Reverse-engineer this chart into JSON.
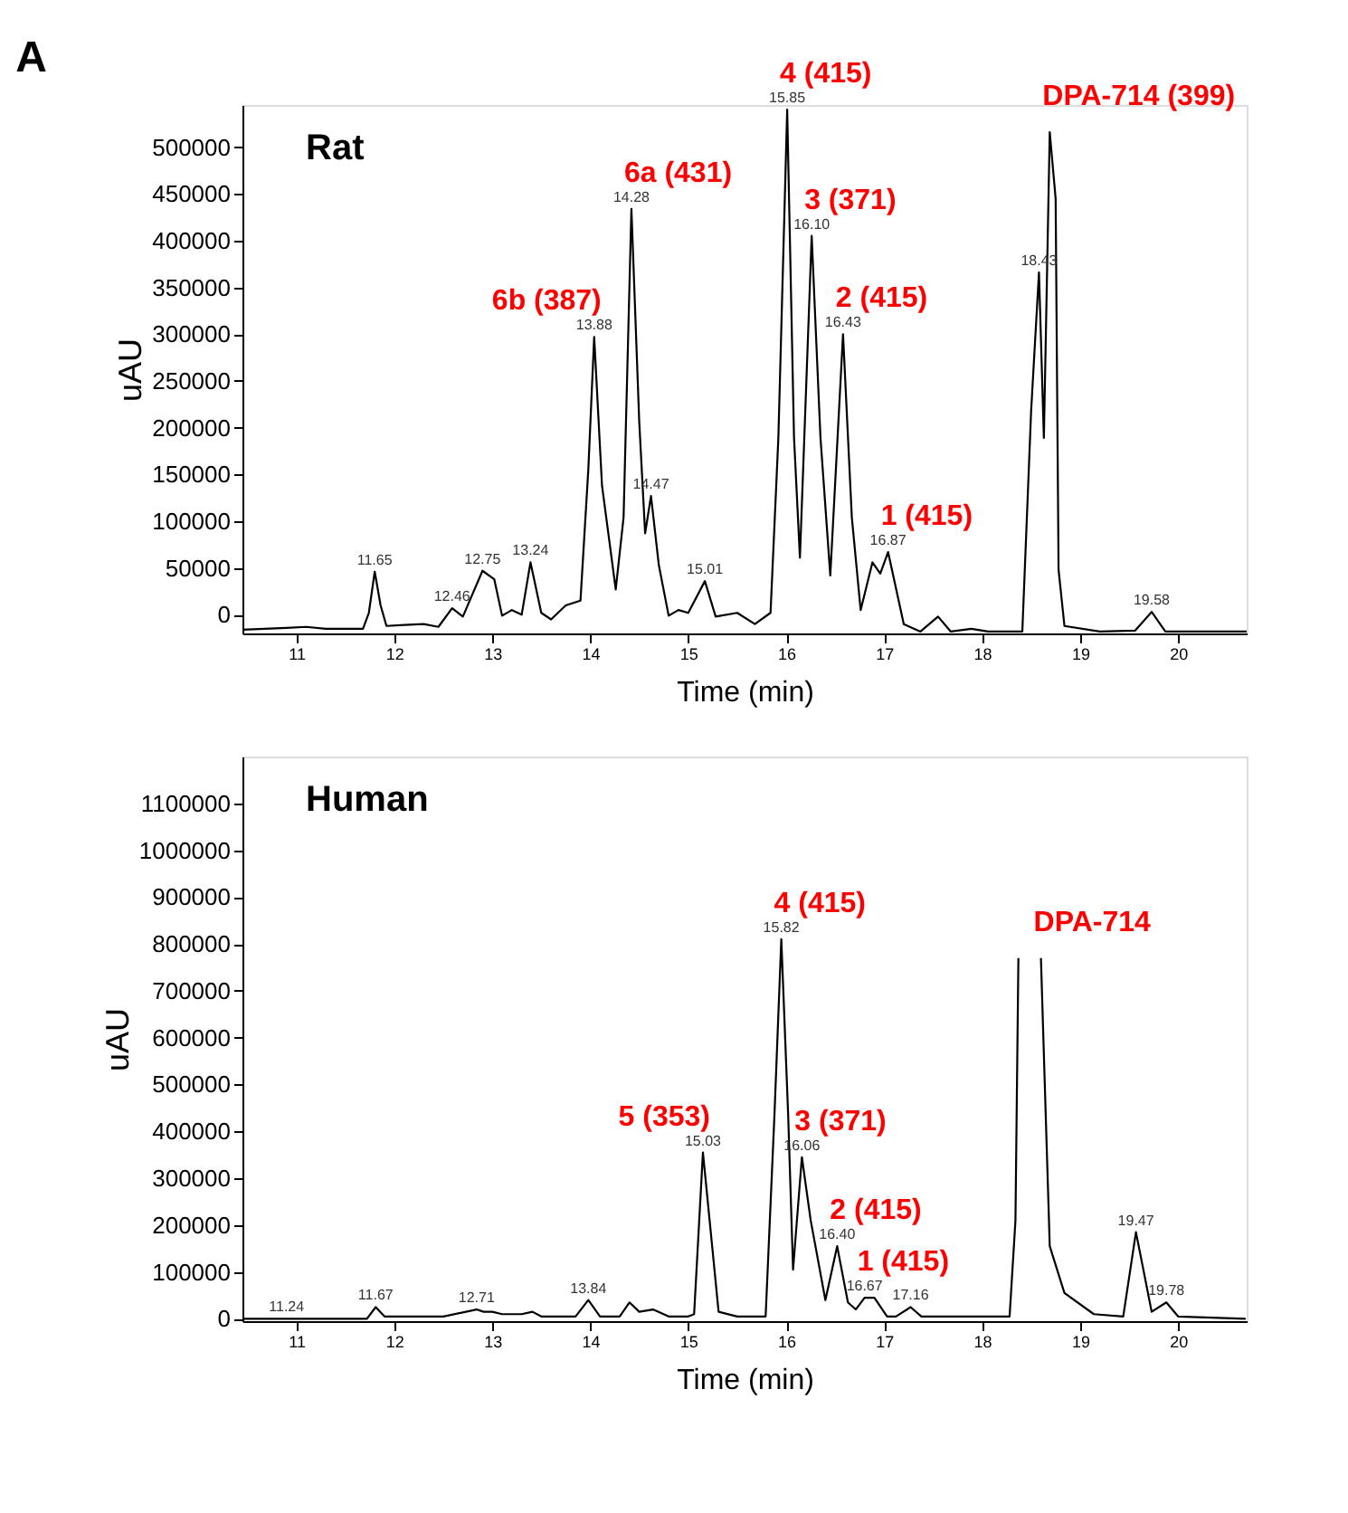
{
  "chart_data": [
    {
      "type": "line",
      "title": "A",
      "xlabel": "Time (min)",
      "ylabel": "uAU",
      "grid": false,
      "line_style": "solid",
      "xlim": [
        10.45,
        20.7
      ],
      "ylim": [
        -20000,
        545000
      ],
      "xticks": [
        11,
        12,
        13,
        14,
        15,
        16,
        17,
        18,
        19,
        20
      ],
      "yticks": [
        0,
        50000,
        100000,
        150000,
        200000,
        250000,
        300000,
        350000,
        400000,
        450000,
        500000
      ],
      "x": [
        10.45,
        10.9,
        11.1,
        11.3,
        11.68,
        11.74,
        11.8,
        11.86,
        11.92,
        12.1,
        12.3,
        12.45,
        12.59,
        12.7,
        12.9,
        13.02,
        13.1,
        13.2,
        13.3,
        13.39,
        13.5,
        13.6,
        13.75,
        13.9,
        13.98,
        14.04,
        14.12,
        14.26,
        14.34,
        14.42,
        14.5,
        14.56,
        14.62,
        14.7,
        14.8,
        14.9,
        15.0,
        15.17,
        15.28,
        15.5,
        15.68,
        15.84,
        15.92,
        16.01,
        16.08,
        16.14,
        16.26,
        16.35,
        16.45,
        16.58,
        16.67,
        16.76,
        16.88,
        16.96,
        17.04,
        17.2,
        17.37,
        17.55,
        17.68,
        17.89,
        18.06,
        18.41,
        18.5,
        18.58,
        18.63,
        18.69,
        18.75,
        18.78,
        18.84,
        19.2,
        19.56,
        19.73,
        19.87,
        20.56,
        20.7
      ],
      "series": [
        {
          "color": "#000000",
          "values": [
            -16000,
            -14000,
            -13000,
            -15000,
            -15000,
            2000,
            46000,
            10000,
            -12000,
            -11000,
            -10000,
            -13000,
            7000,
            -2000,
            47000,
            38000,
            -1000,
            5000,
            0,
            56000,
            2000,
            -5000,
            10000,
            15000,
            155000,
            297000,
            138000,
            27000,
            104000,
            434000,
            206000,
            87000,
            127000,
            53000,
            -1000,
            5000,
            2000,
            36000,
            -2000,
            2000,
            -10000,
            2000,
            189000,
            540000,
            189000,
            61000,
            405000,
            189000,
            42000,
            300000,
            104000,
            5000,
            56000,
            44000,
            67000,
            -10000,
            -18000,
            -2000,
            -18000,
            -15000,
            -18000,
            -18000,
            218000,
            366000,
            189000,
            516000,
            445000,
            48000,
            -12000,
            -18000,
            -17000,
            3000,
            -18000,
            -18000,
            -18000
          ]
        }
      ],
      "annotations": [
        "Rat",
        {
          "text": "6b (387)",
          "x": 14.04,
          "y": 297000
        },
        {
          "text": "6a (431)",
          "x": 14.42,
          "y": 434000
        },
        {
          "text": "4 (415)",
          "x": 16.01,
          "y": 540000
        },
        {
          "text": "3 (371)",
          "x": 16.26,
          "y": 405000
        },
        {
          "text": "2 (415)",
          "x": 16.58,
          "y": 300000
        },
        {
          "text": "1 (415)",
          "x": 17.04,
          "y": 67000
        },
        {
          "text": "DPA-714 (399)",
          "x": 18.69,
          "y": 516000
        },
        {
          "text": "11.65",
          "x": 11.8,
          "y": 46000
        },
        {
          "text": "12.46",
          "x": 12.59,
          "y": 7000
        },
        {
          "text": "12.75",
          "x": 12.9,
          "y": 47000
        },
        {
          "text": "13.24",
          "x": 13.39,
          "y": 56000
        },
        {
          "text": "13.88",
          "x": 14.04,
          "y": 297000
        },
        {
          "text": "14.28",
          "x": 14.42,
          "y": 434000
        },
        {
          "text": "14.47",
          "x": 14.62,
          "y": 127000
        },
        {
          "text": "15.01",
          "x": 15.17,
          "y": 36000
        },
        {
          "text": "15.85",
          "x": 16.01,
          "y": 540000
        },
        {
          "text": "16.10",
          "x": 16.26,
          "y": 405000
        },
        {
          "text": "16.43",
          "x": 16.58,
          "y": 300000
        },
        {
          "text": "16.87",
          "x": 17.04,
          "y": 67000
        },
        {
          "text": "18.43",
          "x": 18.58,
          "y": 366000
        },
        {
          "text": "19.58",
          "x": 19.73,
          "y": 3000
        }
      ]
    },
    {
      "type": "line",
      "xlabel": "Time (min)",
      "ylabel": "uAU",
      "grid": false,
      "line_style": "solid",
      "xlim": [
        10.45,
        20.7
      ],
      "ylim": [
        -5000,
        1200000
      ],
      "xticks": [
        11,
        12,
        13,
        14,
        15,
        16,
        17,
        18,
        19,
        20
      ],
      "yticks": [
        0,
        100000,
        200000,
        300000,
        400000,
        500000,
        600000,
        700000,
        800000,
        900000,
        1000000,
        1100000
      ],
      "x": [
        10.45,
        10.9,
        11.5,
        11.72,
        11.81,
        11.9,
        12.5,
        12.84,
        12.91,
        13.0,
        13.1,
        13.3,
        13.41,
        13.5,
        13.7,
        13.85,
        13.98,
        14.1,
        14.3,
        14.4,
        14.5,
        14.64,
        14.8,
        15.0,
        15.06,
        15.15,
        15.31,
        15.5,
        15.79,
        15.88,
        15.95,
        16.02,
        16.07,
        16.16,
        16.25,
        16.4,
        16.52,
        16.63,
        16.71,
        16.8,
        16.9,
        17.03,
        17.12,
        17.27,
        17.38,
        17.71,
        18.0,
        18.28,
        18.34,
        18.37,
        18.4,
        18.57,
        18.6,
        18.69,
        18.84,
        19.14,
        19.44,
        19.57,
        19.73,
        19.88,
        20.0,
        20.69
      ],
      "series": [
        {
          "color": "#000000",
          "values": [
            0,
            0,
            0,
            0,
            25000,
            5000,
            5000,
            20000,
            15000,
            15000,
            10000,
            10000,
            15000,
            5000,
            5000,
            5000,
            40000,
            5000,
            5000,
            35000,
            15000,
            20000,
            5000,
            5000,
            10000,
            355000,
            15000,
            5000,
            5000,
            435000,
            810000,
            435000,
            105000,
            345000,
            210000,
            40000,
            155000,
            35000,
            20000,
            45000,
            45000,
            5000,
            5000,
            25000,
            5000,
            5000,
            5000,
            5000,
            210000,
            770000,
            null,
            null,
            770000,
            155000,
            55000,
            10000,
            5000,
            185000,
            15000,
            35000,
            5000,
            0
          ]
        }
      ],
      "annotations": [
        "Human",
        {
          "text": "DPA-714",
          "x": 18.6,
          "y": 770000
        },
        {
          "text": "4 (415)",
          "x": 15.95,
          "y": 810000
        },
        {
          "text": "5 (353)",
          "x": 15.15,
          "y": 355000
        },
        {
          "text": "3 (371)",
          "x": 16.16,
          "y": 345000
        },
        {
          "text": "2 (415)",
          "x": 16.52,
          "y": 155000
        },
        {
          "text": "1 (415)",
          "x": 16.8,
          "y": 45000
        },
        {
          "text": "11.24",
          "x": 10.9,
          "y": 0
        },
        {
          "text": "11.67",
          "x": 11.81,
          "y": 25000
        },
        {
          "text": "12.71",
          "x": 12.84,
          "y": 20000
        },
        {
          "text": "13.84",
          "x": 13.98,
          "y": 40000
        },
        {
          "text": "15.03",
          "x": 15.15,
          "y": 355000
        },
        {
          "text": "15.82",
          "x": 15.95,
          "y": 810000
        },
        {
          "text": "16.06",
          "x": 16.16,
          "y": 345000
        },
        {
          "text": "16.40",
          "x": 16.52,
          "y": 155000
        },
        {
          "text": "16.67",
          "x": 16.8,
          "y": 45000
        },
        {
          "text": "17.16",
          "x": 17.27,
          "y": 25000
        },
        {
          "text": "19.47",
          "x": 19.57,
          "y": 185000
        },
        {
          "text": "19.78",
          "x": 19.88,
          "y": 35000
        }
      ]
    }
  ]
}
